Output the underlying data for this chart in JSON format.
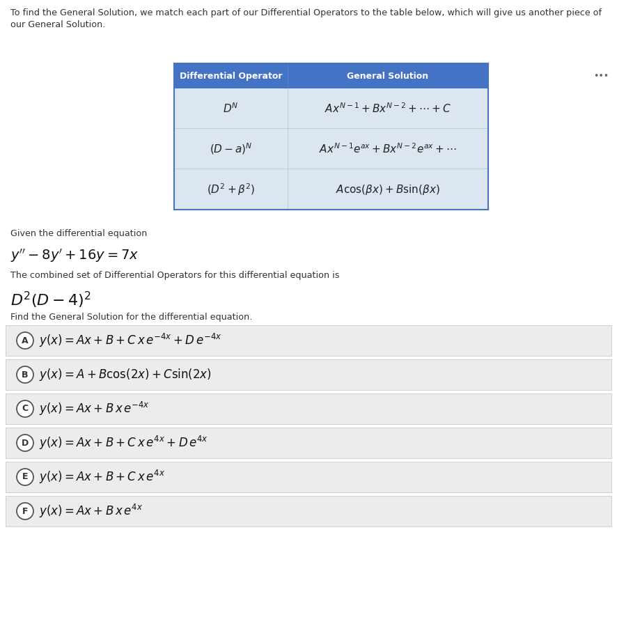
{
  "bg_color": "#f0f0f0",
  "white": "#ffffff",
  "page_bg": "#f5f5f5",
  "intro_text_line1": "To find the General Solution, we match each part of our Differential Operators to the table below, which will give us another piece of",
  "intro_text_line2": "our General Solution.",
  "table_header_bg": "#4472c4",
  "table_header_text_color": "#ffffff",
  "table_row_bg": "#dce6f1",
  "table_divider_color": "#b8cce4",
  "table_col1_header": "Differential Operator",
  "table_col2_header": "General Solution",
  "table_rows": [
    [
      "$D^N$",
      "$Ax^{N-1} + Bx^{N-2} + \\cdots + C$"
    ],
    [
      "$(D - a)^N$",
      "$Ax^{N-1}e^{ax} + Bx^{N-2}e^{ax} + \\cdots$"
    ],
    [
      "$(D^2 + \\beta^2)$",
      "$A\\cos(\\beta x) + B\\sin(\\beta x)$"
    ]
  ],
  "given_text": "Given the differential equation",
  "diff_eq": "$y'' - 8y' + 16y = 7x$",
  "combined_text": "The combined set of Differential Operators for this differential equation is",
  "operator": "$D^2(D - 4)^2$",
  "find_text": "Find the General Solution for the differential equation.",
  "choices": [
    [
      "A",
      "$y(x) = Ax + B + C\\,x\\,e^{-4x} + D\\,e^{-4x}$"
    ],
    [
      "B",
      "$y(x) = A + B\\cos(2x) + C\\sin(2x)$"
    ],
    [
      "C",
      "$y(x) = Ax + B\\,x\\,e^{-4x}$"
    ],
    [
      "D",
      "$y(x) = Ax + B + C\\,x\\,e^{4x} + D\\,e^{4x}$"
    ],
    [
      "E",
      "$y(x) = Ax + B + C\\,x\\,e^{4x}$"
    ],
    [
      "F",
      "$y(x) = Ax + B\\,x\\,e^{4x}$"
    ]
  ],
  "choice_bg": "#ececec",
  "choice_border": "#d0d0d0",
  "dots_color": "#666666",
  "text_color": "#333333",
  "eq_color": "#111111"
}
